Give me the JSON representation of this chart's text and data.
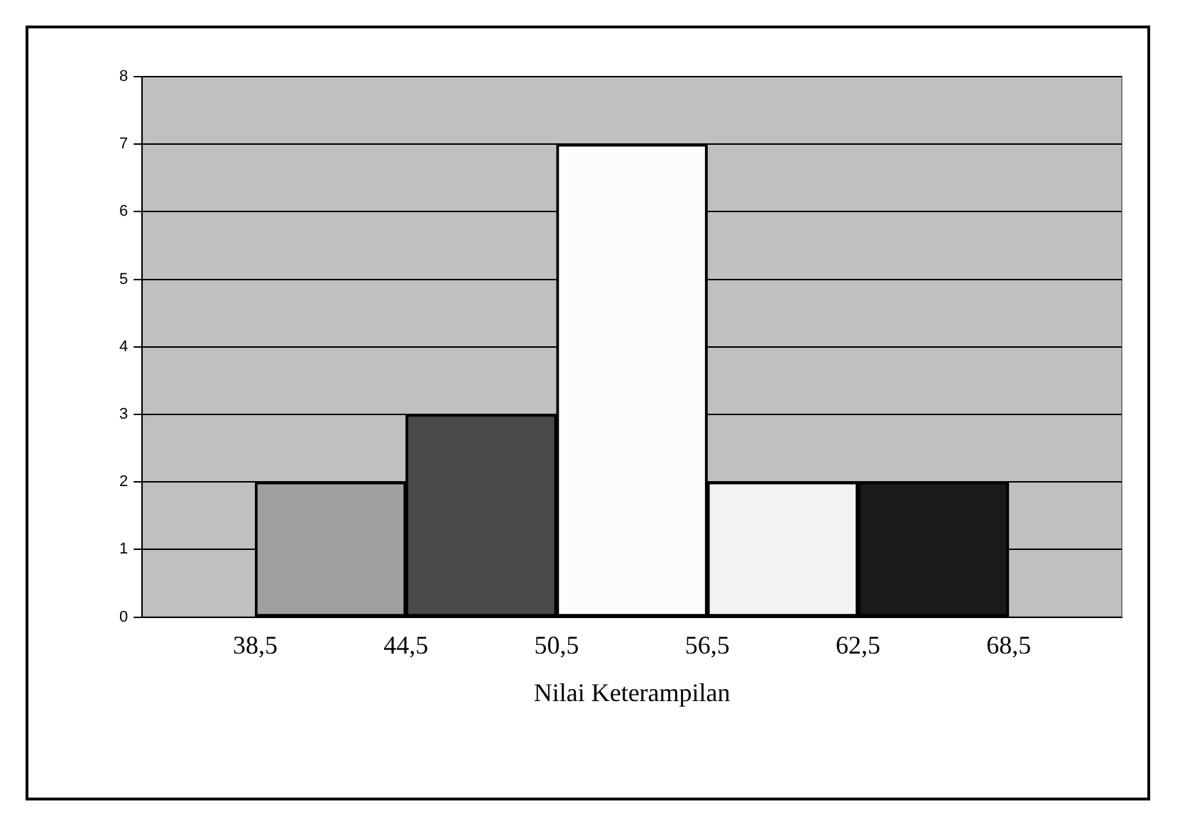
{
  "chart_data": {
    "type": "histogram",
    "xlabel": "Nilai Keterampilan",
    "bins": [
      38.5,
      44.5,
      50.5,
      56.5,
      62.5,
      68.5
    ],
    "values": [
      2,
      3,
      7,
      2,
      2
    ],
    "colors": [
      "#a0a0a0",
      "#4a4a4a",
      "#fcfcfc",
      "#f2f2f2",
      "#1a1a1a"
    ],
    "xlim": [
      34,
      73
    ],
    "xticks": [
      {
        "value": 38.5,
        "label": "38,5"
      },
      {
        "value": 44.5,
        "label": "44,5"
      },
      {
        "value": 50.5,
        "label": "50,5"
      },
      {
        "value": 56.5,
        "label": "56,5"
      },
      {
        "value": 62.5,
        "label": "62,5"
      },
      {
        "value": 68.5,
        "label": "68,5"
      }
    ],
    "ylim": [
      0,
      8
    ],
    "yticks": [
      0,
      1,
      2,
      3,
      4,
      5,
      6,
      7,
      8
    ],
    "grid": "y",
    "legend": false
  }
}
